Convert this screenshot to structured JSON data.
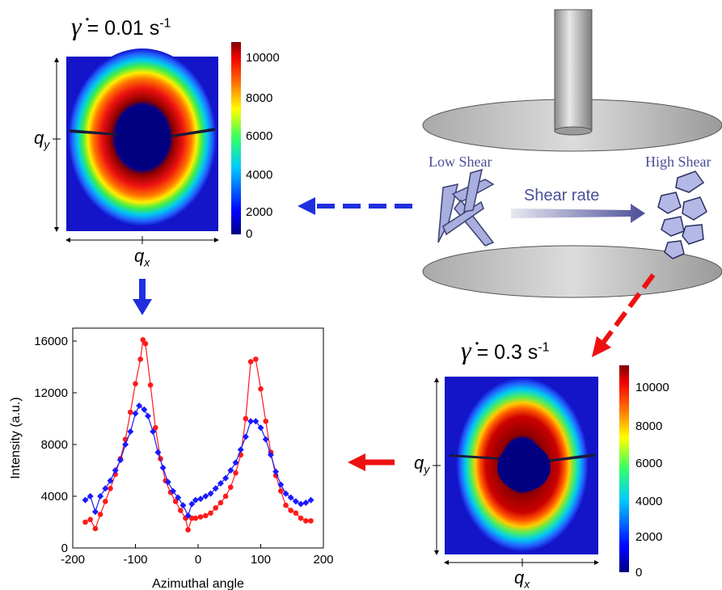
{
  "colors": {
    "red": "#ff1a1a",
    "blue": "#1a1aff",
    "arrow_blue": "#1f2fe0",
    "arrow_red": "#ee1111",
    "shear_text": "#4a4f96"
  },
  "top_pattern": {
    "rate_symbol": "γ̇",
    "rate_value": "= 0.01 s",
    "rate_exp": "-1",
    "qx": "q",
    "qx_sub": "x",
    "qy": "q",
    "qy_sub": "y",
    "colorbar_ticks": [
      "10000",
      "8000",
      "6000",
      "4000",
      "2000",
      "0"
    ]
  },
  "bottom_pattern": {
    "rate_symbol": "γ̇",
    "rate_value": "= 0.3 s",
    "rate_exp": "-1",
    "qx": "q",
    "qx_sub": "x",
    "qy": "q",
    "qy_sub": "y",
    "colorbar_ticks": [
      "10000",
      "8000",
      "6000",
      "4000",
      "2000",
      "0"
    ]
  },
  "schematic": {
    "low_shear": "Low Shear",
    "high_shear": "High Shear",
    "shear_rate": "Shear rate"
  },
  "chart_data": {
    "type": "line",
    "title": "",
    "xlabel": "Azimuthal angle",
    "ylabel": "Intensity (a.u.)",
    "xlim": [
      -200,
      200
    ],
    "ylim": [
      0,
      17000
    ],
    "xticks": [
      -200,
      -100,
      0,
      100,
      200
    ],
    "yticks": [
      0,
      4000,
      8000,
      12000,
      16000
    ],
    "grid": false,
    "series": [
      {
        "color": "#ff1a1a",
        "marker": "circle",
        "points": [
          [
            -180,
            2000
          ],
          [
            -172,
            2200
          ],
          [
            -164,
            1500
          ],
          [
            -156,
            2600
          ],
          [
            -148,
            3600
          ],
          [
            -140,
            4600
          ],
          [
            -132,
            5700
          ],
          [
            -124,
            6900
          ],
          [
            -116,
            8400
          ],
          [
            -108,
            10500
          ],
          [
            -100,
            12700
          ],
          [
            -92,
            14600
          ],
          [
            -88,
            16100
          ],
          [
            -84,
            15800
          ],
          [
            -76,
            12600
          ],
          [
            -68,
            9300
          ],
          [
            -60,
            6900
          ],
          [
            -52,
            5200
          ],
          [
            -44,
            4300
          ],
          [
            -36,
            3600
          ],
          [
            -28,
            2900
          ],
          [
            -20,
            2300
          ],
          [
            -16,
            1400
          ],
          [
            -10,
            2300
          ],
          [
            -4,
            2300
          ],
          [
            4,
            2400
          ],
          [
            12,
            2500
          ],
          [
            20,
            2700
          ],
          [
            28,
            3100
          ],
          [
            36,
            3500
          ],
          [
            44,
            4000
          ],
          [
            52,
            4700
          ],
          [
            60,
            5800
          ],
          [
            68,
            7200
          ],
          [
            76,
            10000
          ],
          [
            84,
            14400
          ],
          [
            92,
            14600
          ],
          [
            100,
            12300
          ],
          [
            108,
            9800
          ],
          [
            116,
            7400
          ],
          [
            124,
            5600
          ],
          [
            132,
            4400
          ],
          [
            140,
            3300
          ],
          [
            148,
            2900
          ],
          [
            156,
            2700
          ],
          [
            164,
            2300
          ],
          [
            172,
            2100
          ],
          [
            180,
            2100
          ]
        ]
      },
      {
        "color": "#1a1aff",
        "marker": "diamond",
        "points": [
          [
            -180,
            3700
          ],
          [
            -172,
            4000
          ],
          [
            -164,
            2800
          ],
          [
            -156,
            4000
          ],
          [
            -148,
            4600
          ],
          [
            -140,
            5200
          ],
          [
            -132,
            6000
          ],
          [
            -124,
            6800
          ],
          [
            -116,
            8000
          ],
          [
            -108,
            9000
          ],
          [
            -100,
            10400
          ],
          [
            -94,
            11000
          ],
          [
            -86,
            10700
          ],
          [
            -80,
            10200
          ],
          [
            -72,
            9000
          ],
          [
            -64,
            7400
          ],
          [
            -56,
            6200
          ],
          [
            -48,
            5100
          ],
          [
            -40,
            4400
          ],
          [
            -32,
            3900
          ],
          [
            -24,
            3300
          ],
          [
            -16,
            2500
          ],
          [
            -10,
            3400
          ],
          [
            -4,
            3700
          ],
          [
            4,
            3800
          ],
          [
            12,
            4000
          ],
          [
            20,
            4200
          ],
          [
            28,
            4600
          ],
          [
            36,
            5000
          ],
          [
            44,
            5400
          ],
          [
            52,
            6000
          ],
          [
            60,
            6600
          ],
          [
            68,
            7600
          ],
          [
            76,
            8600
          ],
          [
            84,
            9800
          ],
          [
            92,
            9800
          ],
          [
            100,
            9300
          ],
          [
            108,
            8400
          ],
          [
            116,
            7200
          ],
          [
            124,
            5900
          ],
          [
            132,
            4900
          ],
          [
            140,
            4200
          ],
          [
            148,
            3900
          ],
          [
            156,
            3600
          ],
          [
            164,
            3400
          ],
          [
            172,
            3500
          ],
          [
            180,
            3700
          ]
        ]
      }
    ]
  }
}
